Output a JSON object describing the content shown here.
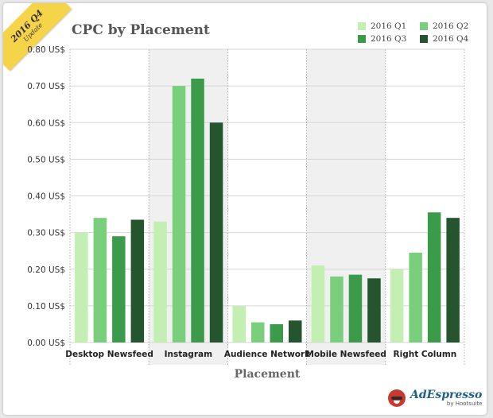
{
  "badge": {
    "line1": "2016 Q4",
    "line2": "Update"
  },
  "logo": {
    "brand": "AdEspresso",
    "by": "by Hootsuite"
  },
  "colors": {
    "q1": "#c3efb3",
    "q2": "#79cf7b",
    "q3": "#3b9b4b",
    "q4": "#24552e",
    "band": "#f0f0f0",
    "grid": "#d6d6d6"
  },
  "chart_data": {
    "type": "bar",
    "title": "CPC by Placement",
    "xlabel": "Placement",
    "ylabel": "",
    "ylim": [
      0,
      0.8
    ],
    "y_ticks": [
      "0.00 US$",
      "0.10 US$",
      "0.20 US$",
      "0.30 US$",
      "0.40 US$",
      "0.50 US$",
      "0.60 US$",
      "0.70 US$",
      "0.80 US$"
    ],
    "categories": [
      "Desktop Newsfeed",
      "Instagram",
      "Audience Network",
      "Mobile Newsfeed",
      "Right Column"
    ],
    "series": [
      {
        "name": "2016 Q1",
        "values": [
          0.3,
          0.33,
          0.1,
          0.21,
          0.2
        ]
      },
      {
        "name": "2016 Q2",
        "values": [
          0.34,
          0.7,
          0.055,
          0.18,
          0.245
        ]
      },
      {
        "name": "2016 Q3",
        "values": [
          0.29,
          0.72,
          0.05,
          0.185,
          0.355
        ]
      },
      {
        "name": "2016 Q4",
        "values": [
          0.335,
          0.6,
          0.06,
          0.175,
          0.34
        ]
      }
    ],
    "legend_position": "top-right",
    "grid": true
  }
}
